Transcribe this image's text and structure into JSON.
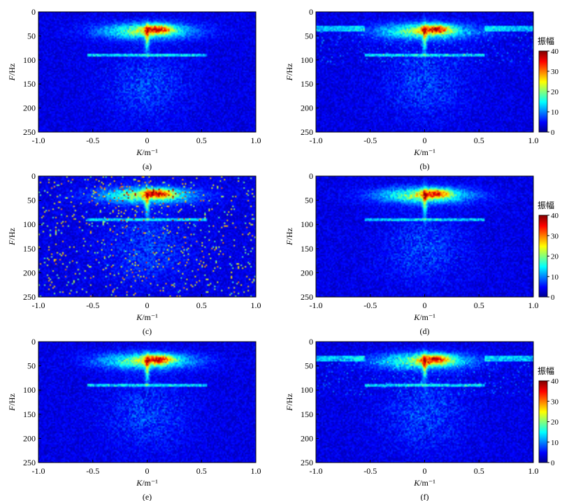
{
  "colorbar": {
    "label": "振幅",
    "ticks": [
      0,
      10,
      20,
      30,
      40
    ],
    "clim": [
      0,
      40
    ],
    "colormap": "jet"
  },
  "chart_data": [
    {
      "type": "heatmap",
      "caption": "(a)",
      "xlabel_var": "K",
      "xlabel_unit": "/m⁻¹",
      "ylabel_var": "F",
      "ylabel_unit": "/Hz",
      "xlim": [
        -1.0,
        1.0
      ],
      "ylim": [
        250,
        0
      ],
      "xticks": [
        "-1.0",
        "-0.5",
        "0",
        "0.5",
        "1.0"
      ],
      "yticks": [
        "0",
        "50",
        "100",
        "150",
        "200",
        "250"
      ],
      "features": {
        "core_amplitude": 40,
        "band_center_hz": 40,
        "line_hz": 90,
        "horizontal_streaks": false,
        "sparse_noise": false
      },
      "colorbar": false
    },
    {
      "type": "heatmap",
      "caption": "(b)",
      "xlabel_var": "K",
      "xlabel_unit": "/m⁻¹",
      "ylabel_var": "F",
      "ylabel_unit": "/Hz",
      "xlim": [
        -1.0,
        1.0
      ],
      "ylim": [
        250,
        0
      ],
      "xticks": [
        "-1.0",
        "-0.5",
        "0",
        "0.5",
        "1.0"
      ],
      "yticks": [
        "0",
        "50",
        "100",
        "150",
        "200",
        "250"
      ],
      "features": {
        "core_amplitude": 40,
        "band_center_hz": 40,
        "line_hz": 90,
        "horizontal_streaks": true,
        "sparse_noise": false
      },
      "colorbar": true
    },
    {
      "type": "heatmap",
      "caption": "(c)",
      "xlabel_var": "K",
      "xlabel_unit": "/m⁻¹",
      "ylabel_var": "F",
      "ylabel_unit": "/Hz",
      "xlim": [
        -1.0,
        1.0
      ],
      "ylim": [
        250,
        0
      ],
      "xticks": [
        "-1.0",
        "-0.5",
        "0",
        "0.5",
        "1.0"
      ],
      "yticks": [
        "0",
        "50",
        "100",
        "150",
        "200",
        "250"
      ],
      "features": {
        "core_amplitude": 40,
        "band_center_hz": 40,
        "line_hz": 90,
        "horizontal_streaks": false,
        "sparse_noise": true
      },
      "colorbar": false
    },
    {
      "type": "heatmap",
      "caption": "(d)",
      "xlabel_var": "K",
      "xlabel_unit": "/m⁻¹",
      "ylabel_var": "F",
      "ylabel_unit": "/Hz",
      "xlim": [
        -1.0,
        1.0
      ],
      "ylim": [
        250,
        0
      ],
      "xticks": [
        "-1.0",
        "-0.5",
        "0",
        "0.5",
        "1.0"
      ],
      "yticks": [
        "0",
        "50",
        "100",
        "150",
        "200",
        "250"
      ],
      "features": {
        "core_amplitude": 40,
        "band_center_hz": 40,
        "line_hz": 90,
        "horizontal_streaks": false,
        "sparse_noise": false
      },
      "colorbar": true
    },
    {
      "type": "heatmap",
      "caption": "(e)",
      "xlabel_var": "K",
      "xlabel_unit": "/m⁻¹",
      "ylabel_var": "F",
      "ylabel_unit": "/Hz",
      "xlim": [
        -1.0,
        1.0
      ],
      "ylim": [
        250,
        0
      ],
      "xticks": [
        "-1.0",
        "-0.5",
        "0",
        "0.5",
        "1.0"
      ],
      "yticks": [
        "0",
        "50",
        "100",
        "150",
        "200",
        "250"
      ],
      "features": {
        "core_amplitude": 40,
        "band_center_hz": 40,
        "line_hz": 90,
        "horizontal_streaks": false,
        "sparse_noise": false
      },
      "colorbar": false
    },
    {
      "type": "heatmap",
      "caption": "(f)",
      "xlabel_var": "K",
      "xlabel_unit": "/m⁻¹",
      "ylabel_var": "F",
      "ylabel_unit": "/Hz",
      "xlim": [
        -1.0,
        1.0
      ],
      "ylim": [
        250,
        0
      ],
      "xticks": [
        "-1.0",
        "-0.5",
        "0",
        "0.5",
        "1.0"
      ],
      "yticks": [
        "0",
        "50",
        "100",
        "150",
        "200",
        "250"
      ],
      "features": {
        "core_amplitude": 40,
        "band_center_hz": 40,
        "line_hz": 90,
        "horizontal_streaks": true,
        "sparse_noise": false
      },
      "colorbar": true
    }
  ]
}
